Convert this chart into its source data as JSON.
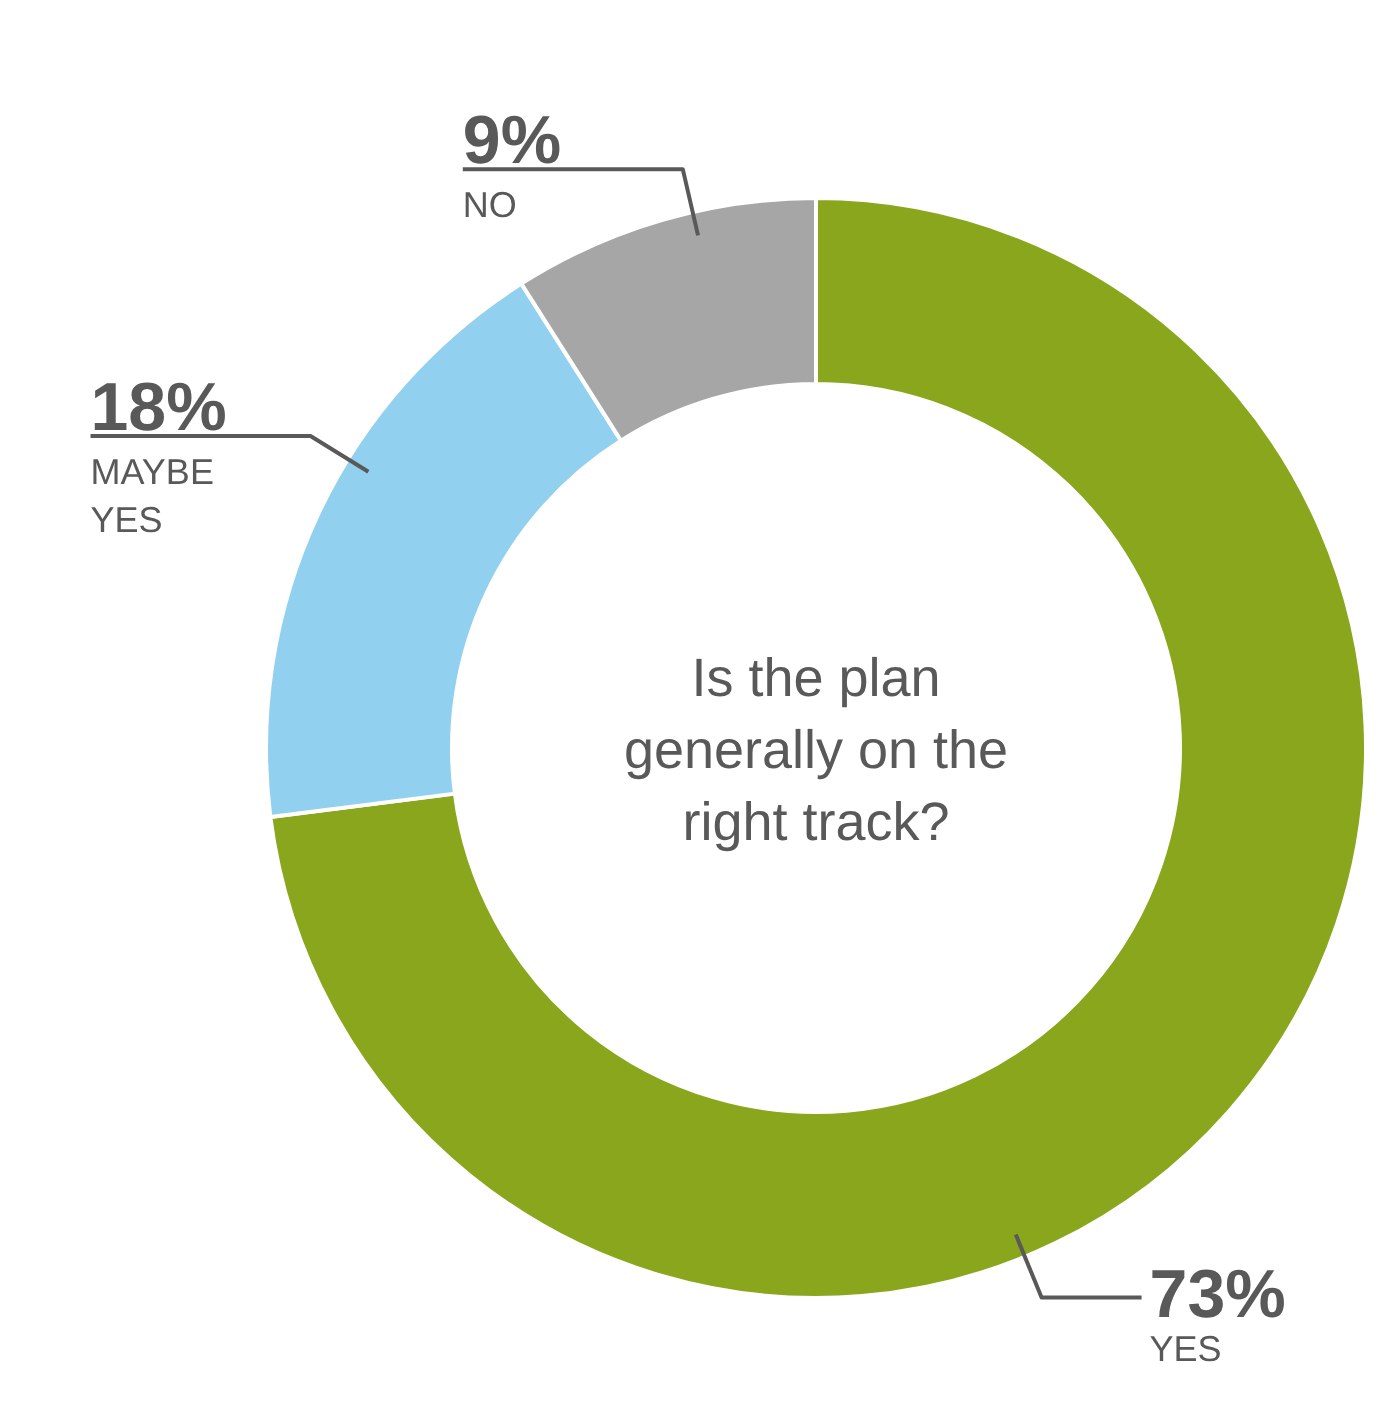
{
  "chart_data": {
    "type": "donut",
    "title": "Is the plan generally on the right track?",
    "categories": [
      "YES",
      "MAYBE YES",
      "NO"
    ],
    "values": [
      73,
      18,
      9
    ],
    "colors": [
      "#8aa61c",
      "#92d0f0",
      "#a6a6a6"
    ],
    "value_labels": [
      "73%",
      "18%",
      "9%"
    ]
  }
}
